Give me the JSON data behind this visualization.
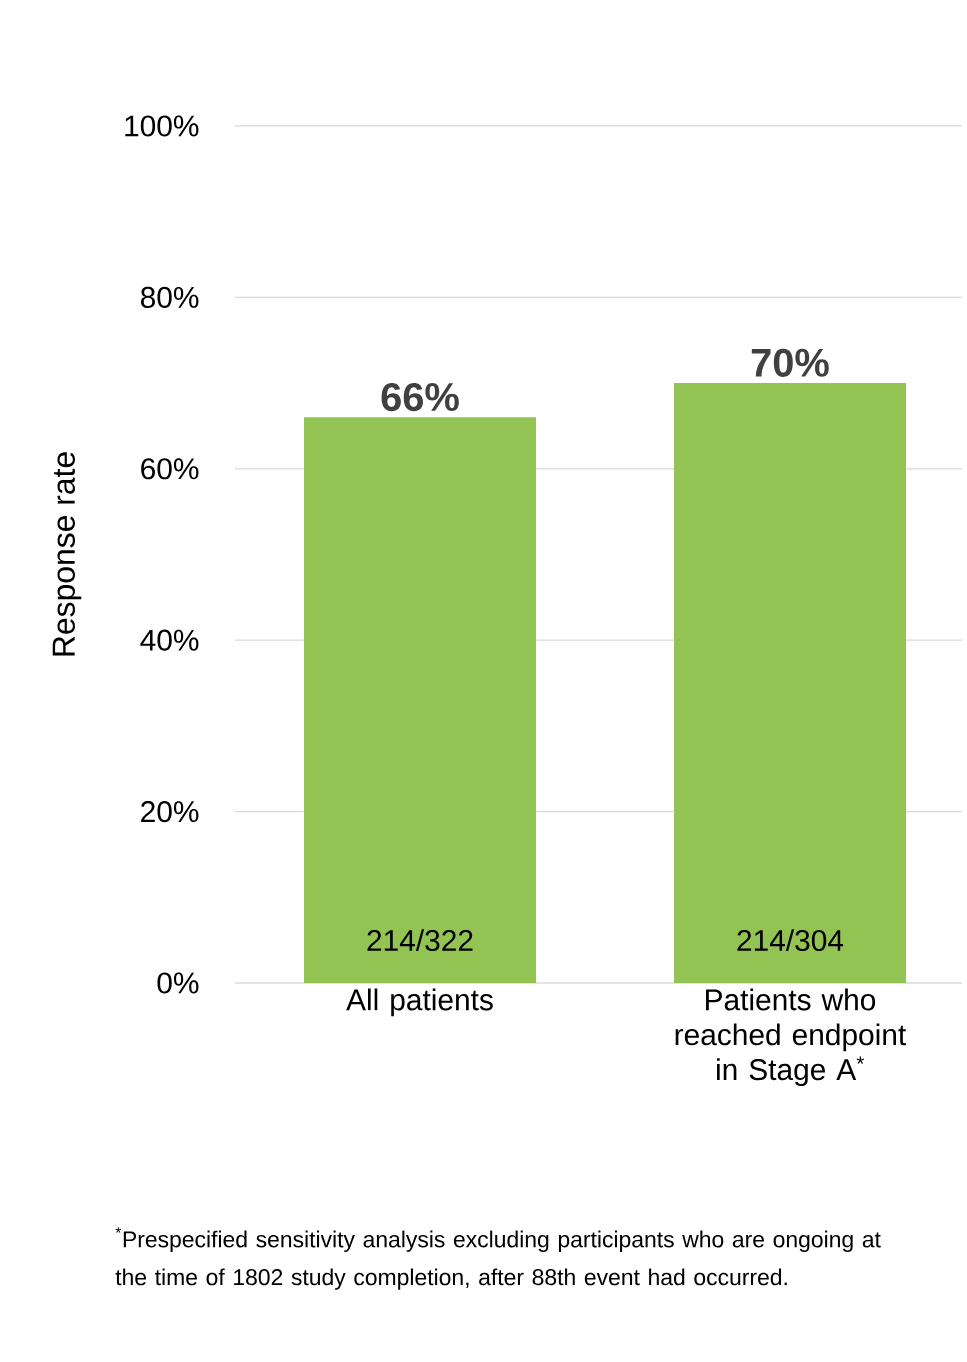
{
  "chart_data": {
    "type": "bar",
    "ylabel": "Response rate",
    "categories": [
      "All patients",
      "Patients who reached endpoint in Stage A$^{*}$"
    ],
    "values": [
      66,
      70
    ],
    "color": "#92c353",
    "value_labels": [
      "66%",
      "70%"
    ],
    "ylim": [
      0,
      100
    ],
    "yticks": [
      {
        "value": 0,
        "label": "0%"
      },
      {
        "value": 20,
        "label": "20%"
      },
      {
        "value": 40,
        "label": "40%"
      },
      {
        "value": 60,
        "label": "60%"
      },
      {
        "value": 80,
        "label": "80%"
      },
      {
        "value": 100,
        "label": "100%"
      }
    ],
    "grid": "y",
    "annotations": [
      "214/322",
      "214/304",
      "$^{*}$Prespecified sensitivity analysis excluding participants who are ongoing at the time of 1802 study completion, after 88th event had occurred."
    ]
  }
}
